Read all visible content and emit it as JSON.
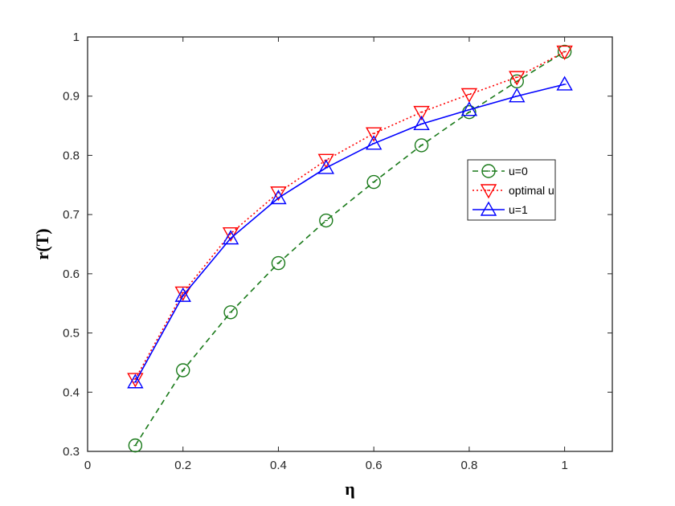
{
  "chart_data": {
    "type": "line",
    "title": "",
    "xlabel": "η",
    "ylabel": "r(T)",
    "xlim": [
      0,
      1.1
    ],
    "ylim": [
      0.3,
      1.0
    ],
    "xticks": [
      0,
      0.2,
      0.4,
      0.6,
      0.8,
      1
    ],
    "xtick_labels": [
      "0",
      "0.2",
      "0.4",
      "0.6",
      "0.8",
      "1"
    ],
    "yticks": [
      0.3,
      0.4,
      0.5,
      0.6,
      0.7,
      0.8,
      0.9,
      1.0
    ],
    "ytick_labels": [
      "0.3",
      "0.4",
      "0.5",
      "0.6",
      "0.7",
      "0.8",
      "0.9",
      "1"
    ],
    "grid": false,
    "legend_position": "right-center",
    "x": [
      0.1,
      0.2,
      0.3,
      0.4,
      0.5,
      0.6,
      0.7,
      0.8,
      0.9,
      1.0
    ],
    "series": [
      {
        "name": "u=0",
        "color": "#1a7a1a",
        "dash": "dashed",
        "marker": "circle",
        "values": [
          0.31,
          0.437,
          0.535,
          0.618,
          0.69,
          0.755,
          0.817,
          0.873,
          0.925,
          0.975
        ]
      },
      {
        "name": "optimal u",
        "color": "#ff0000",
        "dash": "dotted",
        "marker": "triangle-down",
        "values": [
          0.422,
          0.568,
          0.668,
          0.737,
          0.792,
          0.837,
          0.873,
          0.903,
          0.932,
          0.975
        ]
      },
      {
        "name": "u=1",
        "color": "#0000ff",
        "dash": "solid",
        "marker": "triangle-up",
        "values": [
          0.417,
          0.563,
          0.66,
          0.728,
          0.779,
          0.82,
          0.853,
          0.877,
          0.9,
          0.92
        ]
      }
    ]
  }
}
